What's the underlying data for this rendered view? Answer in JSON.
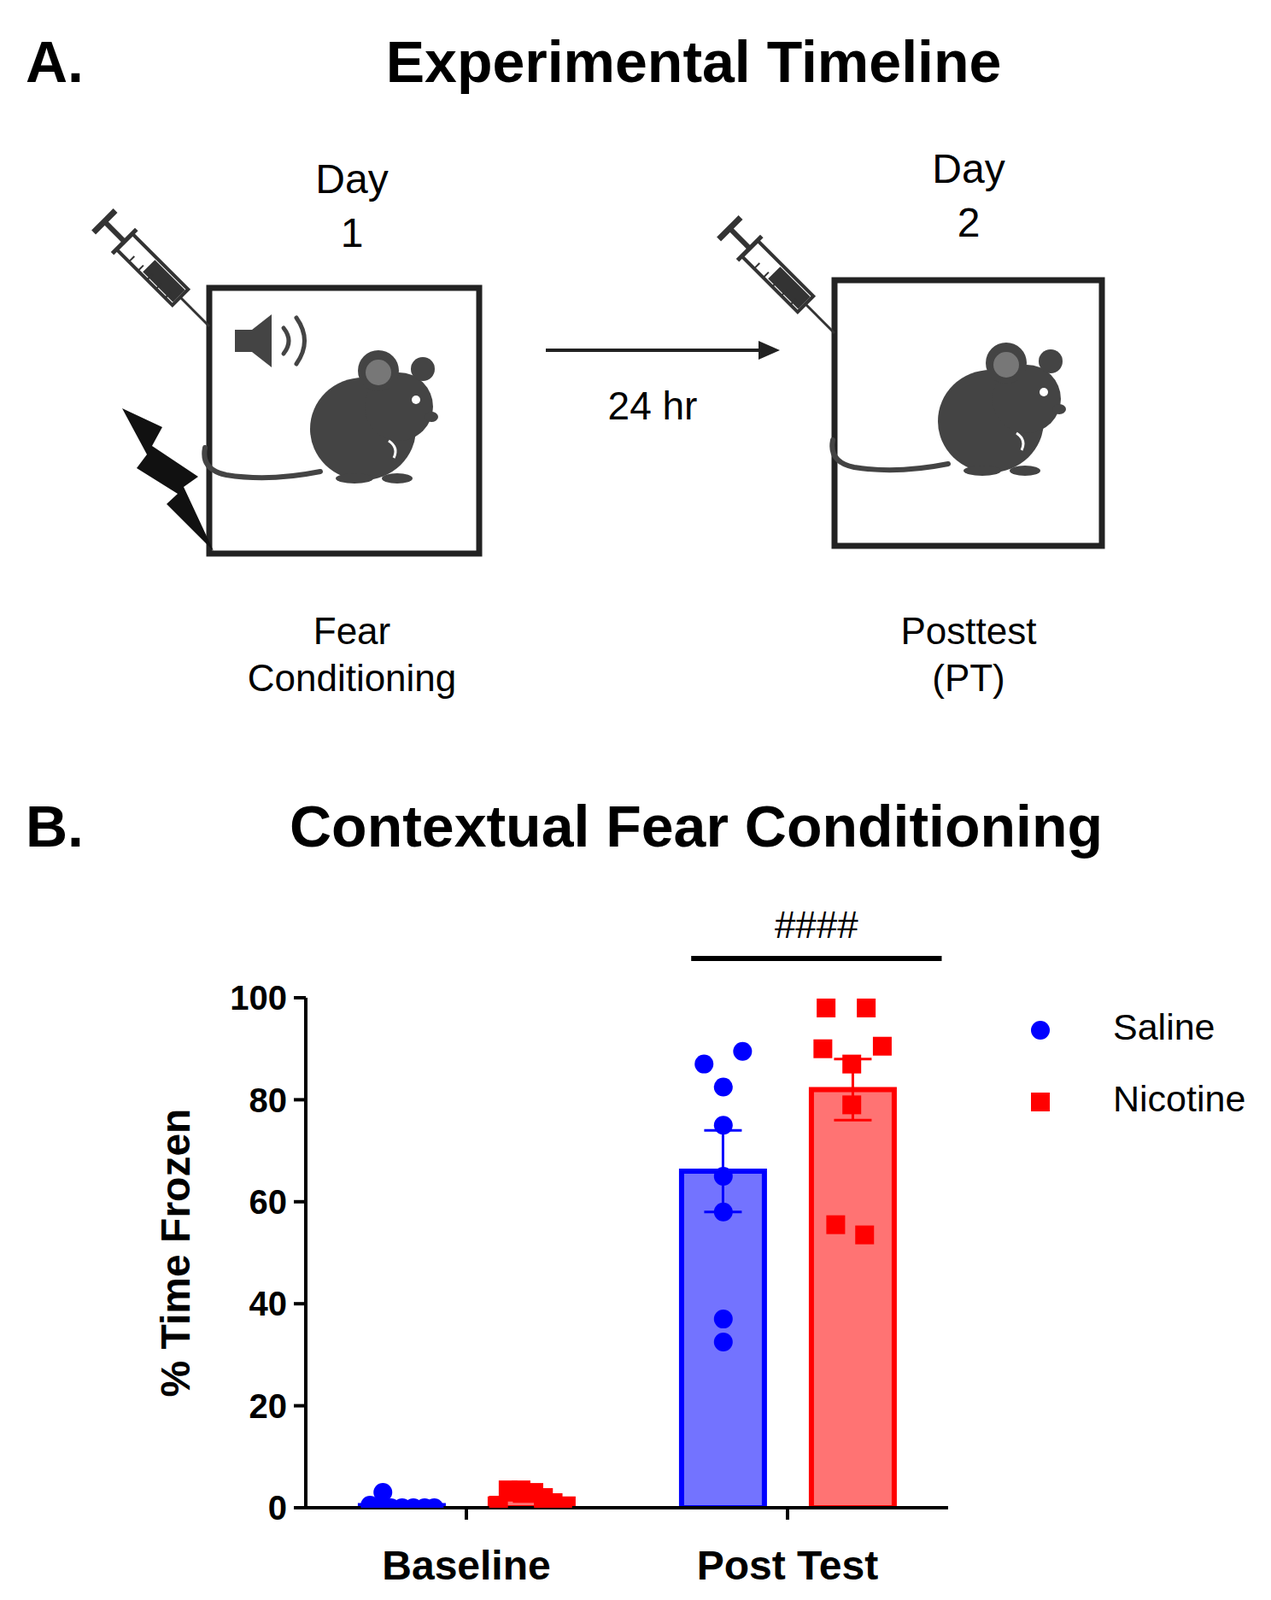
{
  "timeline": {
    "panel_label": "A.",
    "title": "Experimental Timeline",
    "steps": [
      {
        "day": [
          "Day",
          "1"
        ],
        "caption": [
          "Fear",
          "Conditioning"
        ]
      },
      {
        "day": [
          "Day",
          "2"
        ],
        "caption": [
          "Posttest",
          "(PT)"
        ]
      }
    ],
    "interval": "24 hr"
  },
  "chart_data": {
    "type": "bar",
    "panel_label": "B.",
    "title": "Contextual Fear Conditioning",
    "y_label": "% Time Frozen",
    "categories": [
      "Baseline",
      "Post Test"
    ],
    "ylim": [
      0,
      100
    ],
    "yticks": [
      0,
      20,
      40,
      60,
      80,
      100
    ],
    "legend": "upper right",
    "series": [
      {
        "name": "Saline",
        "color": "#0000ff",
        "marker": "circle",
        "values": [
          0.4,
          66
        ],
        "errors": [
          0.4,
          8
        ],
        "points": [
          [
            3,
            0.5,
            0,
            0,
            0,
            0,
            0,
            0
          ],
          [
            87,
            89.5,
            82.5,
            75,
            65,
            58,
            37,
            32.5
          ]
        ]
      },
      {
        "name": "Nicotine",
        "color": "#ff0000",
        "marker": "square",
        "values": [
          1.7,
          82
        ],
        "errors": [
          0.5,
          6
        ],
        "points": [
          [
            3.5,
            3.5,
            3,
            2,
            1,
            0.5,
            0,
            0
          ],
          [
            98,
            98,
            90,
            90.5,
            87,
            79,
            55.5,
            53.5
          ]
        ]
      }
    ],
    "annotations": [
      {
        "text": "####",
        "category": "Post Test"
      }
    ]
  }
}
